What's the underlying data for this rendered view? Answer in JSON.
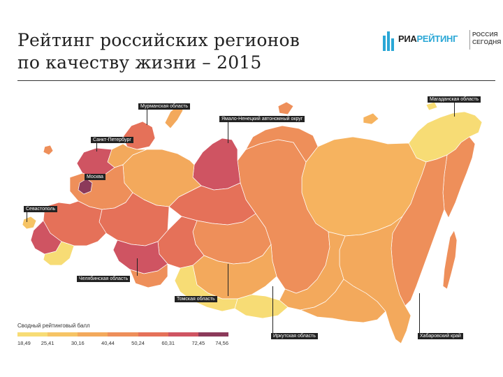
{
  "title": {
    "line1": "Рейтинг российских регионов",
    "line2": "по качеству жизни – 2015"
  },
  "logo": {
    "brand_part1": "РИА",
    "brand_part2": "РЕЙТИНГ",
    "sub_line1": "РОССИЯ",
    "sub_line2": "СЕГОДНЯ"
  },
  "labels": {
    "murmansk": "Мурманская область",
    "yamal": "Ямало-Ненецкий автономный округ",
    "magadan": "Магаданская область",
    "spb": "Санкт-Петербург",
    "moscow": "Москва",
    "sevastopol": "Севастополь",
    "chelyabinsk": "Челябинская область",
    "tomsk": "Томская область",
    "irkutsk": "Иркутская область",
    "khabarovsk": "Хабаровский край"
  },
  "legend": {
    "title": "Сводный рейтинговый балл",
    "ticks": [
      "18,49",
      "25,41",
      "30,16",
      "40,44",
      "50,24",
      "60,31",
      "72,45",
      "74,56"
    ],
    "colors": [
      "#f7dc75",
      "#f6c465",
      "#f3a95c",
      "#ee8f5a",
      "#e57159",
      "#cf5462",
      "#8c3a5a"
    ]
  }
}
